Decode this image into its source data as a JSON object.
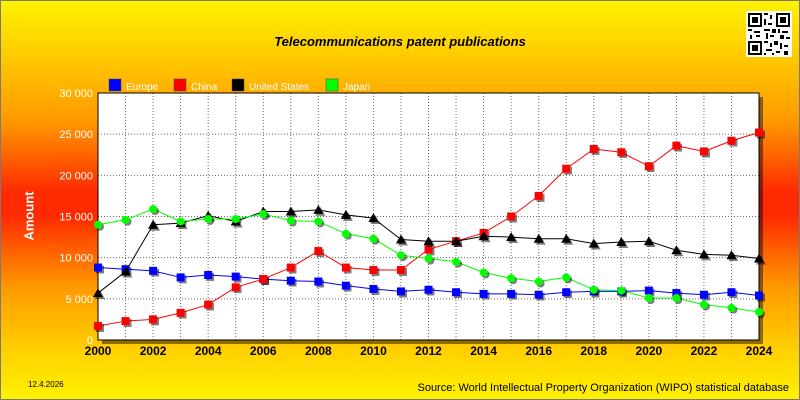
{
  "chart_data": {
    "type": "line",
    "title": "Telecommunications patent publications",
    "ylabel": "Amount",
    "xlabel": "",
    "ylim": [
      0,
      30000
    ],
    "yticks": [
      {
        "value": 0,
        "label": "0"
      },
      {
        "value": 5000,
        "label": "5 000"
      },
      {
        "value": 10000,
        "label": "10 000"
      },
      {
        "value": 15000,
        "label": "15 000"
      },
      {
        "value": 20000,
        "label": "20 000"
      },
      {
        "value": 25000,
        "label": "25 000"
      },
      {
        "value": 30000,
        "label": "30 000"
      }
    ],
    "xlim": [
      2000,
      2024
    ],
    "xticks": [
      2000,
      2002,
      2004,
      2006,
      2008,
      2010,
      2012,
      2014,
      2016,
      2018,
      2020,
      2022,
      2024
    ],
    "x": [
      2000,
      2001,
      2002,
      2003,
      2004,
      2005,
      2006,
      2007,
      2008,
      2009,
      2010,
      2011,
      2012,
      2013,
      2014,
      2015,
      2016,
      2017,
      2018,
      2019,
      2020,
      2021,
      2022,
      2023,
      2024
    ],
    "grid": true,
    "legend_position": "top-left",
    "series": [
      {
        "name": "Europe",
        "color": "#0000ff",
        "marker": "square",
        "values": [
          8800,
          8600,
          8400,
          7600,
          7900,
          7700,
          7400,
          7200,
          7100,
          6600,
          6200,
          5900,
          6100,
          5800,
          5600,
          5600,
          5500,
          5800,
          5900,
          5900,
          6000,
          5700,
          5500,
          5800,
          5400
        ]
      },
      {
        "name": "China",
        "color": "#ff0000",
        "marker": "square",
        "values": [
          1700,
          2300,
          2500,
          3300,
          4300,
          6400,
          7400,
          8800,
          10800,
          8800,
          8500,
          8500,
          11000,
          12000,
          13000,
          15000,
          17500,
          20800,
          23200,
          22800,
          21100,
          23600,
          22900,
          24200,
          25200
        ]
      },
      {
        "name": "United States",
        "color": "#000000",
        "marker": "triangle",
        "values": [
          5700,
          8300,
          14000,
          14200,
          15100,
          14400,
          15600,
          15600,
          15800,
          15200,
          14800,
          12200,
          12000,
          12000,
          12600,
          12500,
          12300,
          12300,
          11700,
          11900,
          12000,
          10900,
          10400,
          10300,
          9900
        ]
      },
      {
        "name": "Japan",
        "color": "#00ff00",
        "marker": "circle",
        "values": [
          14000,
          14600,
          15900,
          14400,
          14700,
          14700,
          15300,
          14500,
          14400,
          12900,
          12300,
          10300,
          9900,
          9500,
          8200,
          7500,
          7100,
          7600,
          6100,
          6000,
          5100,
          5100,
          4300,
          3900,
          3400
        ]
      }
    ]
  },
  "footer": {
    "date": "12.4.2026",
    "source": "Source: World Intellectual Property Organization (WIPO) statistical database"
  }
}
